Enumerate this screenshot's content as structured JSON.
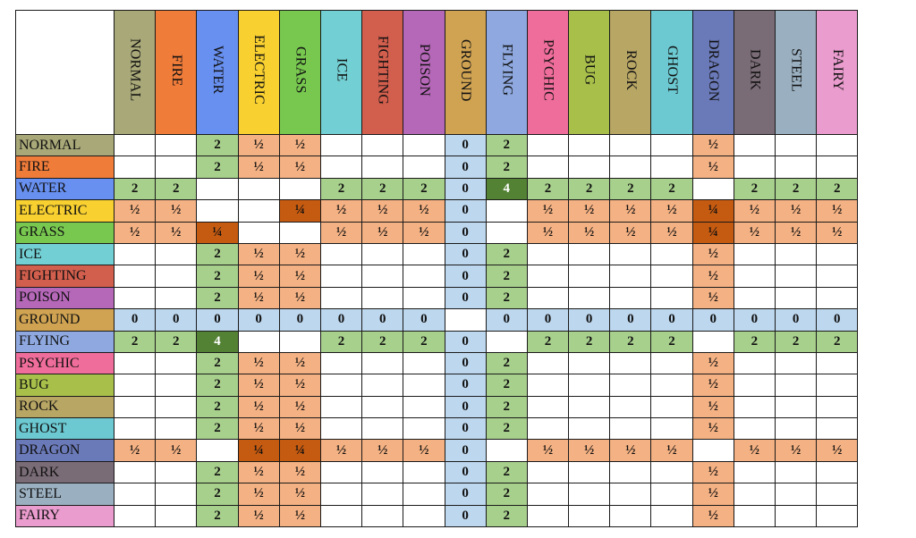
{
  "types": [
    {
      "name": "NORMAL",
      "color": "#a8a878"
    },
    {
      "name": "FIRE",
      "color": "#f07c3a"
    },
    {
      "name": "WATER",
      "color": "#6890f0"
    },
    {
      "name": "ELECTRIC",
      "color": "#f8d030"
    },
    {
      "name": "GRASS",
      "color": "#78c850"
    },
    {
      "name": "ICE",
      "color": "#72cfd3"
    },
    {
      "name": "FIGHTING",
      "color": "#d25e4d"
    },
    {
      "name": "POISON",
      "color": "#b567b8"
    },
    {
      "name": "GROUND",
      "color": "#d0a352"
    },
    {
      "name": "FLYING",
      "color": "#8fa9e0"
    },
    {
      "name": "PSYCHIC",
      "color": "#ef6d9a"
    },
    {
      "name": "BUG",
      "color": "#a8c04a"
    },
    {
      "name": "ROCK",
      "color": "#b8a665"
    },
    {
      "name": "GHOST",
      "color": "#6cc9d1"
    },
    {
      "name": "DRAGON",
      "color": "#6a79b8"
    },
    {
      "name": "DARK",
      "color": "#7a6c76"
    },
    {
      "name": "STEEL",
      "color": "#9ab0c0"
    },
    {
      "name": "FAIRY",
      "color": "#e99ccd"
    }
  ],
  "chart_data": {
    "type": "table",
    "columns": [
      "NORMAL",
      "FIRE",
      "WATER",
      "ELECTRIC",
      "GRASS",
      "ICE",
      "FIGHTING",
      "POISON",
      "GROUND",
      "FLYING",
      "PSYCHIC",
      "BUG",
      "ROCK",
      "GHOST",
      "DRAGON",
      "DARK",
      "STEEL",
      "FAIRY"
    ],
    "rows": [
      {
        "label": "NORMAL",
        "values": [
          "",
          "",
          "2",
          "½",
          "½",
          "",
          "",
          "",
          "0",
          "2",
          "",
          "",
          "",
          "",
          "½",
          "",
          "",
          ""
        ]
      },
      {
        "label": "FIRE",
        "values": [
          "",
          "",
          "2",
          "½",
          "½",
          "",
          "",
          "",
          "0",
          "2",
          "",
          "",
          "",
          "",
          "½",
          "",
          "",
          ""
        ]
      },
      {
        "label": "WATER",
        "values": [
          "2",
          "2",
          "",
          "",
          "",
          "2",
          "2",
          "2",
          "0",
          "4",
          "2",
          "2",
          "2",
          "2",
          "",
          "2",
          "2",
          "2"
        ]
      },
      {
        "label": "ELECTRIC",
        "values": [
          "½",
          "½",
          "",
          "",
          "¼",
          "½",
          "½",
          "½",
          "0",
          "",
          "½",
          "½",
          "½",
          "½",
          "¼",
          "½",
          "½",
          "½"
        ]
      },
      {
        "label": "GRASS",
        "values": [
          "½",
          "½",
          "¼",
          "",
          "",
          "½",
          "½",
          "½",
          "0",
          "",
          "½",
          "½",
          "½",
          "½",
          "¼",
          "½",
          "½",
          "½"
        ]
      },
      {
        "label": "ICE",
        "values": [
          "",
          "",
          "2",
          "½",
          "½",
          "",
          "",
          "",
          "0",
          "2",
          "",
          "",
          "",
          "",
          "½",
          "",
          "",
          ""
        ]
      },
      {
        "label": "FIGHTING",
        "values": [
          "",
          "",
          "2",
          "½",
          "½",
          "",
          "",
          "",
          "0",
          "2",
          "",
          "",
          "",
          "",
          "½",
          "",
          "",
          ""
        ]
      },
      {
        "label": "POISON",
        "values": [
          "",
          "",
          "2",
          "½",
          "½",
          "",
          "",
          "",
          "0",
          "2",
          "",
          "",
          "",
          "",
          "½",
          "",
          "",
          ""
        ]
      },
      {
        "label": "GROUND",
        "values": [
          "0",
          "0",
          "0",
          "0",
          "0",
          "0",
          "0",
          "0",
          "",
          "0",
          "0",
          "0",
          "0",
          "0",
          "0",
          "0",
          "0",
          "0"
        ]
      },
      {
        "label": "FLYING",
        "values": [
          "2",
          "2",
          "4",
          "",
          "",
          "2",
          "2",
          "2",
          "0",
          "",
          "2",
          "2",
          "2",
          "2",
          "",
          "2",
          "2",
          "2"
        ]
      },
      {
        "label": "PSYCHIC",
        "values": [
          "",
          "",
          "2",
          "½",
          "½",
          "",
          "",
          "",
          "0",
          "2",
          "",
          "",
          "",
          "",
          "½",
          "",
          "",
          ""
        ]
      },
      {
        "label": "BUG",
        "values": [
          "",
          "",
          "2",
          "½",
          "½",
          "",
          "",
          "",
          "0",
          "2",
          "",
          "",
          "",
          "",
          "½",
          "",
          "",
          ""
        ]
      },
      {
        "label": "ROCK",
        "values": [
          "",
          "",
          "2",
          "½",
          "½",
          "",
          "",
          "",
          "0",
          "2",
          "",
          "",
          "",
          "",
          "½",
          "",
          "",
          ""
        ]
      },
      {
        "label": "GHOST",
        "values": [
          "",
          "",
          "2",
          "½",
          "½",
          "",
          "",
          "",
          "0",
          "2",
          "",
          "",
          "",
          "",
          "½",
          "",
          "",
          ""
        ]
      },
      {
        "label": "DRAGON",
        "values": [
          "½",
          "½",
          "",
          "¼",
          "¼",
          "½",
          "½",
          "½",
          "0",
          "",
          "½",
          "½",
          "½",
          "½",
          "",
          "½",
          "½",
          "½"
        ]
      },
      {
        "label": "DARK",
        "values": [
          "",
          "",
          "2",
          "½",
          "½",
          "",
          "",
          "",
          "0",
          "2",
          "",
          "",
          "",
          "",
          "½",
          "",
          "",
          ""
        ]
      },
      {
        "label": "STEEL",
        "values": [
          "",
          "",
          "2",
          "½",
          "½",
          "",
          "",
          "",
          "0",
          "2",
          "",
          "",
          "",
          "",
          "½",
          "",
          "",
          ""
        ]
      },
      {
        "label": "FAIRY",
        "values": [
          "",
          "",
          "2",
          "½",
          "½",
          "",
          "",
          "",
          "0",
          "2",
          "",
          "",
          "",
          "",
          "½",
          "",
          "",
          ""
        ]
      }
    ],
    "value_colors": {
      "2": "#a8d08d",
      "4": "#548235",
      "½": "#f4b183",
      "¼": "#c55a11",
      "0": "#bdd7ee",
      "": "#ffffff"
    }
  }
}
